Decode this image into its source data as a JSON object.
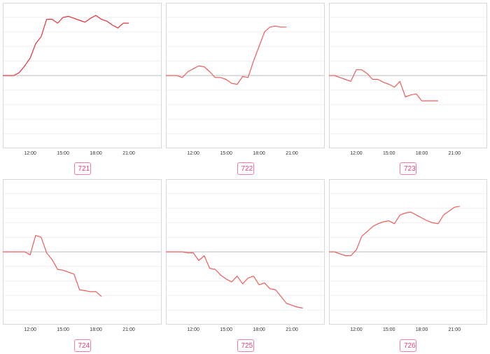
{
  "chart_data": [
    {
      "type": "line",
      "label": "721",
      "x_ticks": [
        "12:00",
        "15:00",
        "18:00",
        "21:00"
      ],
      "x": [
        9.5,
        10,
        10.5,
        11,
        11.5,
        12,
        12.5,
        13,
        13.5,
        14,
        14.5,
        15,
        15.5,
        16,
        16.5,
        17,
        17.5,
        18,
        18.5,
        19,
        19.5,
        20,
        20.5,
        21
      ],
      "values": [
        0,
        0,
        0,
        0.3,
        1.0,
        1.8,
        3.3,
        4.0,
        5.8,
        5.8,
        5.4,
        6.0,
        6.1,
        5.9,
        5.7,
        5.5,
        5.9,
        6.2,
        5.8,
        5.6,
        5.2,
        4.9,
        5.4,
        5.4
      ],
      "ylim": [
        -7.5,
        7.5
      ],
      "grid": true,
      "color": "#e8303a"
    },
    {
      "type": "line",
      "label": "722",
      "x_ticks": [
        "12:00",
        "15:00",
        "18:00",
        "21:00"
      ],
      "x": [
        9.5,
        10,
        10.5,
        11,
        11.5,
        12,
        12.5,
        13,
        13.5,
        14,
        14.5,
        15,
        15.5,
        16,
        16.5,
        17,
        17.5,
        18,
        18.5,
        19,
        19.5,
        20,
        20.5
      ],
      "values": [
        0,
        0,
        0,
        -0.2,
        0.4,
        0.7,
        1.0,
        0.9,
        0.4,
        -0.2,
        -0.2,
        -0.4,
        -0.8,
        -0.9,
        -0.1,
        -0.2,
        1.5,
        3.0,
        4.5,
        5.0,
        5.1,
        5.0,
        5.0
      ],
      "ylim": [
        -7.5,
        7.5
      ],
      "grid": true,
      "color": "#ee5c5c"
    },
    {
      "type": "line",
      "label": "723",
      "x_ticks": [
        "12:00",
        "15:00",
        "18:00",
        "21:00"
      ],
      "x": [
        9.5,
        10,
        10.5,
        11,
        11.5,
        12,
        12.5,
        13,
        13.5,
        14,
        14.5,
        15,
        15.5,
        16,
        16.5,
        17,
        17.5,
        18,
        18.5,
        19,
        19.5
      ],
      "values": [
        0,
        0,
        -0.2,
        -0.4,
        -0.6,
        0.6,
        0.6,
        0.2,
        -0.4,
        -0.4,
        -0.7,
        -0.9,
        -1.2,
        -0.6,
        -2.2,
        -2.0,
        -1.9,
        -2.6,
        -2.6,
        -2.6,
        -2.6
      ],
      "ylim": [
        -7.5,
        7.5
      ],
      "grid": true,
      "color": "#ee5c5c"
    },
    {
      "type": "line",
      "label": "724",
      "x_ticks": [
        "12:00",
        "15:00",
        "18:00",
        "21:00"
      ],
      "x": [
        9.5,
        10,
        10.5,
        11,
        11.5,
        12,
        12.5,
        13,
        13.5,
        14,
        14.5,
        15,
        15.5,
        16,
        16.5,
        17,
        17.5,
        18,
        18.5
      ],
      "values": [
        0,
        0,
        0,
        0,
        0,
        -0.3,
        1.7,
        1.5,
        -0.1,
        -0.8,
        -1.8,
        -1.9,
        -2.1,
        -2.3,
        -3.9,
        -4.0,
        -4.1,
        -4.1,
        -4.6
      ],
      "ylim": [
        -7.5,
        7.5
      ],
      "grid": true,
      "color": "#ee5c5c"
    },
    {
      "type": "line",
      "label": "725",
      "x_ticks": [
        "12:00",
        "15:00",
        "18:00",
        "21:00"
      ],
      "x": [
        9.5,
        10,
        10.5,
        11,
        11.5,
        12,
        12.5,
        13,
        13.5,
        14,
        14.5,
        15,
        15.5,
        16,
        16.5,
        17,
        17.5,
        18,
        18.5,
        19,
        19.5,
        20,
        20.5,
        21,
        21.5,
        22
      ],
      "values": [
        0,
        0,
        0,
        0,
        -0.1,
        -0.1,
        -0.9,
        -0.4,
        -1.7,
        -1.8,
        -2.4,
        -2.8,
        -3.1,
        -2.5,
        -3.3,
        -2.7,
        -2.5,
        -3.4,
        -3.2,
        -3.8,
        -3.9,
        -4.6,
        -5.3,
        -5.5,
        -5.7,
        -5.8
      ],
      "ylim": [
        -7.5,
        7.5
      ],
      "grid": true,
      "color": "#ee5c5c"
    },
    {
      "type": "line",
      "label": "726",
      "x_ticks": [
        "12:00",
        "15:00",
        "18:00",
        "21:00"
      ],
      "x": [
        9.5,
        10,
        10.5,
        11,
        11.5,
        12,
        12.5,
        13,
        13.5,
        14,
        14.5,
        15,
        15.5,
        16,
        16.5,
        17,
        17.5,
        18,
        18.5,
        19,
        19.5,
        20,
        20.5,
        21,
        21.5
      ],
      "values": [
        0,
        0,
        -0.2,
        -0.4,
        -0.4,
        0.2,
        1.6,
        2.1,
        2.6,
        2.9,
        3.1,
        3.2,
        2.9,
        3.8,
        4.0,
        4.1,
        3.8,
        3.5,
        3.2,
        3.0,
        2.9,
        3.8,
        4.2,
        4.6,
        4.7
      ],
      "ylim": [
        -7.5,
        7.5
      ],
      "grid": true,
      "color": "#ee5c5c"
    }
  ]
}
